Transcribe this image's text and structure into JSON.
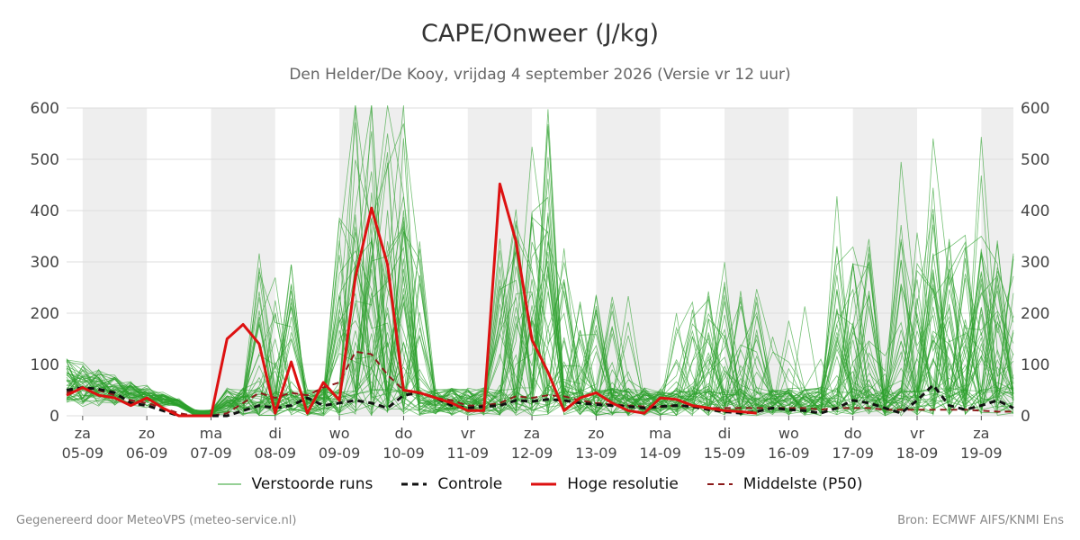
{
  "title": "CAPE/Onweer (J/kg)",
  "subtitle": "Den Helder/De Kooy, vrijdag  4 september 2026 (Versie vr 12 uur)",
  "footer_left": "Gegenereerd door MeteoVPS (meteo-service.nl)",
  "footer_right": "Bron: ECMWF AIFS/KNMI Ens",
  "colors": {
    "perturbed": "#2ca02c",
    "control": "#111111",
    "high_res": "#dd1111",
    "median": "#8b1a1a",
    "weekend_band": "#eeeeee",
    "grid": "#dddddd"
  },
  "chart_data": {
    "type": "line",
    "title": "CAPE/Onweer (J/kg)",
    "ylim": [
      0,
      600
    ],
    "yticks": [
      0,
      100,
      200,
      300,
      400,
      500,
      600
    ],
    "x_unit": "days since first tick (05-09)",
    "xlim": [
      -0.25,
      14.5
    ],
    "x_ticks": [
      {
        "day": "za",
        "date": "05-09"
      },
      {
        "day": "zo",
        "date": "06-09"
      },
      {
        "day": "ma",
        "date": "07-09"
      },
      {
        "day": "di",
        "date": "08-09"
      },
      {
        "day": "wo",
        "date": "09-09"
      },
      {
        "day": "do",
        "date": "10-09"
      },
      {
        "day": "vr",
        "date": "11-09"
      },
      {
        "day": "za",
        "date": "12-09"
      },
      {
        "day": "zo",
        "date": "13-09"
      },
      {
        "day": "ma",
        "date": "14-09"
      },
      {
        "day": "di",
        "date": "15-09"
      },
      {
        "day": "wo",
        "date": "16-09"
      },
      {
        "day": "do",
        "date": "17-09"
      },
      {
        "day": "vr",
        "date": "18-09"
      },
      {
        "day": "za",
        "date": "19-09"
      }
    ],
    "shaded_bands": [
      [
        0,
        1
      ],
      [
        2,
        3
      ],
      [
        4,
        5
      ],
      [
        6,
        7
      ],
      [
        8,
        9
      ],
      [
        10,
        11
      ],
      [
        12,
        13
      ],
      [
        14,
        14.5
      ]
    ],
    "legend": [
      {
        "label": "Verstoorde runs",
        "key": "perturbed"
      },
      {
        "label": "Controle",
        "key": "control"
      },
      {
        "label": "Hoge resolutie",
        "key": "high_res"
      },
      {
        "label": "Middelste (P50)",
        "key": "median"
      }
    ],
    "grid": true,
    "series": [
      {
        "name": "Hoge resolutie",
        "key": "high_res",
        "x": [
          -0.25,
          0,
          0.25,
          0.5,
          0.75,
          1,
          1.25,
          1.5,
          1.75,
          2,
          2.25,
          2.5,
          2.75,
          3,
          3.25,
          3.5,
          3.75,
          4,
          4.25,
          4.5,
          4.75,
          5,
          5.25,
          5.5,
          5.75,
          6,
          6.25,
          6.5,
          6.75,
          7,
          7.25,
          7.5,
          7.75,
          8,
          8.25,
          8.5,
          8.75,
          9,
          9.25,
          9.5,
          9.75,
          10,
          10.25,
          10.5
        ],
        "y": [
          40,
          55,
          40,
          35,
          20,
          35,
          15,
          0,
          0,
          0,
          150,
          178,
          140,
          5,
          105,
          5,
          65,
          30,
          270,
          405,
          295,
          50,
          45,
          35,
          25,
          10,
          10,
          452,
          340,
          148,
          85,
          10,
          35,
          45,
          25,
          10,
          5,
          35,
          32,
          20,
          15,
          10,
          8,
          5
        ]
      },
      {
        "name": "Controle",
        "key": "control",
        "x": [
          -0.25,
          0,
          0.25,
          0.5,
          0.75,
          1,
          1.25,
          1.5,
          1.75,
          2,
          2.25,
          2.5,
          2.75,
          3,
          3.25,
          3.5,
          3.75,
          4,
          4.25,
          4.5,
          4.75,
          5,
          5.25,
          5.5,
          5.75,
          6,
          6.25,
          6.5,
          6.75,
          7,
          7.25,
          7.5,
          7.75,
          8,
          8.25,
          8.5,
          8.75,
          9,
          9.25,
          9.5,
          9.75,
          10,
          10.25,
          10.5,
          10.75,
          11,
          11.25,
          11.5,
          11.75,
          12,
          12.25,
          12.5,
          12.75,
          13,
          13.25,
          13.5,
          13.75,
          14,
          14.25,
          14.5
        ],
        "y": [
          50,
          55,
          52,
          45,
          25,
          20,
          10,
          0,
          0,
          0,
          0,
          10,
          20,
          15,
          20,
          35,
          20,
          25,
          30,
          25,
          15,
          40,
          45,
          35,
          20,
          15,
          18,
          20,
          30,
          28,
          32,
          30,
          25,
          22,
          20,
          18,
          15,
          18,
          20,
          18,
          12,
          8,
          5,
          8,
          15,
          12,
          10,
          5,
          15,
          30,
          25,
          15,
          5,
          30,
          60,
          20,
          12,
          20,
          30,
          15
        ]
      },
      {
        "name": "Middelste (P50)",
        "key": "median",
        "x": [
          -0.25,
          0,
          0.25,
          0.5,
          0.75,
          1,
          1.25,
          1.5,
          1.75,
          2,
          2.25,
          2.5,
          2.75,
          3,
          3.25,
          3.5,
          3.75,
          4,
          4.25,
          4.5,
          4.75,
          5,
          5.25,
          5.5,
          5.75,
          6,
          6.25,
          6.5,
          6.75,
          7,
          7.25,
          7.5,
          7.75,
          8,
          8.25,
          8.5,
          8.75,
          9,
          9.25,
          9.5,
          9.75,
          10,
          10.25,
          10.5,
          10.75,
          11,
          11.25,
          11.5,
          11.75,
          12,
          12.25,
          12.5,
          12.75,
          13,
          13.25,
          13.5,
          13.75,
          14,
          14.25,
          14.5
        ],
        "y": [
          45,
          55,
          50,
          40,
          30,
          25,
          15,
          5,
          0,
          0,
          5,
          25,
          45,
          35,
          45,
          40,
          55,
          65,
          125,
          120,
          80,
          50,
          45,
          35,
          30,
          20,
          20,
          25,
          38,
          35,
          40,
          38,
          30,
          25,
          22,
          20,
          18,
          18,
          20,
          18,
          15,
          15,
          15,
          15,
          15,
          15,
          15,
          12,
          15,
          15,
          15,
          12,
          12,
          12,
          12,
          12,
          12,
          10,
          8,
          8
        ]
      }
    ],
    "perturbed_runs_note": "approx. 50 ensemble members with values 0-600 J/kg, peaks near 09-09/10-09, 11-09/12-09 and scattered spikes thereafter",
    "y_right_axis": [
      0,
      100,
      200,
      300,
      400,
      500,
      600
    ]
  }
}
